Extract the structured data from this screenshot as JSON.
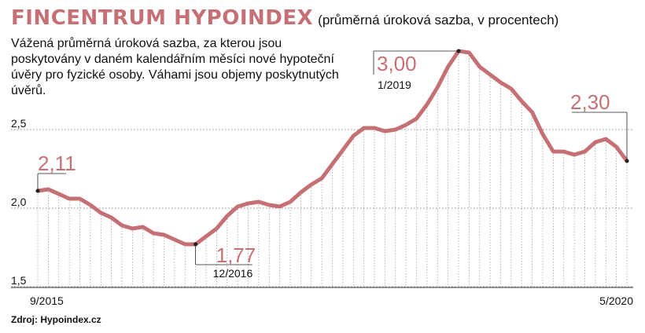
{
  "header": {
    "title": "FINCENTRUM HYPOINDEX",
    "subtitle": "(průměrná úroková sazba, v procentech)",
    "description": "Vážená průměrná úroková sazba, za kterou jsou poskytovány v daném kalendářním měsíci nové hypoteční úvěry pro fyzické osoby. Váhami jsou objemy poskytnutých úvěrů."
  },
  "source": "Zdroj: Hypoindex.cz",
  "colors": {
    "line": "#c57075",
    "title": "#c57075",
    "grid": "#999999"
  },
  "chart_data": {
    "type": "line",
    "x": [
      "9/2015",
      "10/2015",
      "11/2015",
      "12/2015",
      "1/2016",
      "2/2016",
      "3/2016",
      "4/2016",
      "5/2016",
      "6/2016",
      "7/2016",
      "8/2016",
      "9/2016",
      "10/2016",
      "11/2016",
      "12/2016",
      "1/2017",
      "2/2017",
      "3/2017",
      "4/2017",
      "5/2017",
      "6/2017",
      "7/2017",
      "8/2017",
      "9/2017",
      "10/2017",
      "11/2017",
      "12/2017",
      "1/2018",
      "2/2018",
      "3/2018",
      "4/2018",
      "5/2018",
      "6/2018",
      "7/2018",
      "8/2018",
      "9/2018",
      "10/2018",
      "11/2018",
      "12/2018",
      "1/2019",
      "2/2019",
      "3/2019",
      "4/2019",
      "5/2019",
      "6/2019",
      "7/2019",
      "8/2019",
      "9/2019",
      "10/2019",
      "11/2019",
      "12/2019",
      "1/2020",
      "2/2020",
      "3/2020",
      "4/2020",
      "5/2020"
    ],
    "values": [
      2.11,
      2.12,
      2.09,
      2.06,
      2.06,
      2.02,
      1.97,
      1.94,
      1.89,
      1.87,
      1.88,
      1.84,
      1.83,
      1.8,
      1.77,
      1.77,
      1.82,
      1.87,
      1.95,
      2.01,
      2.03,
      2.04,
      2.02,
      2.01,
      2.04,
      2.1,
      2.15,
      2.19,
      2.28,
      2.37,
      2.46,
      2.51,
      2.51,
      2.49,
      2.5,
      2.53,
      2.57,
      2.66,
      2.77,
      2.9,
      3.0,
      2.99,
      2.9,
      2.85,
      2.8,
      2.76,
      2.68,
      2.61,
      2.47,
      2.36,
      2.36,
      2.34,
      2.36,
      2.42,
      2.44,
      2.39,
      2.3
    ],
    "ylim": [
      1.5,
      3.1
    ],
    "yticks": [
      "1,5",
      "2,0",
      "2,5"
    ],
    "ytick_values": [
      1.5,
      2.0,
      2.5
    ],
    "xtick_labels": [
      "9/2015",
      "5/2020"
    ],
    "grid": true,
    "annotations": [
      {
        "label": "2,11",
        "index": 0
      },
      {
        "label": "1,77",
        "date": "12/2016",
        "index": 15
      },
      {
        "label": "3,00",
        "date": "1/2019",
        "index": 40
      },
      {
        "label": "2,30",
        "index": 56
      }
    ]
  }
}
